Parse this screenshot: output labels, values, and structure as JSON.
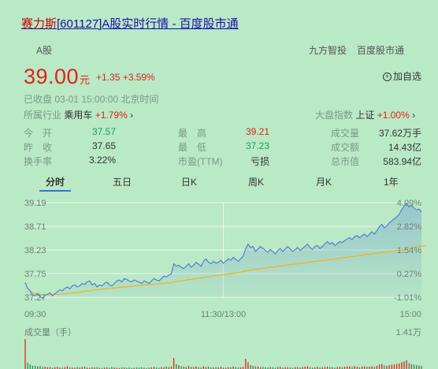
{
  "header": {
    "title_name": "赛力斯",
    "title_rest": "[601127]A股实时行情 - 百度股市通"
  },
  "subbar": {
    "market": "A股",
    "source1": "九方智投",
    "source2": "百度股市通"
  },
  "quote": {
    "price": "39.00",
    "unit": "元",
    "change": "+1.35 +3.59%",
    "add_watch": "加自选",
    "status": "已收盘  03-01 15:00:00  北京时间"
  },
  "industry": {
    "label": "所属行业",
    "name": "乘用车",
    "change": "+1.79%"
  },
  "index_info": {
    "label": "大盘指数",
    "name": "上证",
    "change": "+1.00%"
  },
  "stats": {
    "open_label": "今　开",
    "open": "37.57",
    "prev_label": "昨　收",
    "prev": "37.65",
    "turnover_label": "换手率",
    "turnover": "3.22%",
    "high_label": "最　高",
    "high": "39.21",
    "low_label": "最　低",
    "low": "37.23",
    "pe_label": "市盈(TTM)",
    "pe": "亏损",
    "vol_label": "成交量",
    "vol": "37.62万手",
    "amount_label": "成交额",
    "amount": "14.43亿",
    "mcap_label": "总市值",
    "mcap": "583.94亿"
  },
  "tabs": [
    "分时",
    "五日",
    "日K",
    "周K",
    "月K",
    "1年"
  ],
  "colors": {
    "price_line": "#4a78d6",
    "avg_line": "#f3b21a",
    "up": "#e0221b",
    "down": "#19a15f"
  },
  "chart_data": {
    "type": "line",
    "y_ticks": [
      "39.19",
      "38.71",
      "38.23",
      "37.75",
      "37.27"
    ],
    "pct_ticks": [
      "4.09%",
      "2.82%",
      "1.54%",
      "0.27%",
      "-1.01%"
    ],
    "x_ticks": [
      "09:30",
      "11:30/13:00",
      "15:00"
    ],
    "ylim": [
      37.27,
      39.19
    ],
    "volume_label": "成交量（手）",
    "volume_max": "1.41万",
    "series": [
      {
        "values": [
          37.57,
          37.45,
          37.4,
          37.32,
          37.3,
          37.35,
          37.28,
          37.25,
          37.31,
          37.33,
          37.36,
          37.3,
          37.34,
          37.38,
          37.42,
          37.4,
          37.45,
          37.48,
          37.44,
          37.5,
          37.52,
          37.48,
          37.5,
          37.55,
          37.53,
          37.58,
          37.6,
          37.52,
          37.55,
          37.48,
          37.52,
          37.5,
          37.55,
          37.58,
          37.52,
          37.5,
          37.55,
          37.6,
          37.62,
          37.58,
          37.65,
          37.63,
          37.6,
          37.58,
          37.62,
          37.6,
          37.58,
          37.55,
          37.6,
          37.58,
          37.55,
          37.6,
          37.65,
          37.62,
          37.6,
          37.65,
          37.7,
          37.68,
          37.72,
          37.75,
          37.95,
          37.9,
          37.92,
          37.88,
          37.85,
          37.9,
          37.95,
          37.88,
          37.92,
          37.98,
          37.94,
          37.9,
          38.0,
          38.05,
          37.98,
          37.95,
          38.0,
          37.96,
          37.98,
          38.02,
          37.96,
          38.0,
          38.05,
          38.02,
          38.08,
          38.04,
          38.0,
          38.05,
          38.1,
          38.25,
          38.35,
          38.28,
          38.3,
          38.2,
          38.25,
          38.3,
          38.26,
          38.22,
          38.18,
          38.24,
          38.2,
          38.15,
          38.22,
          38.26,
          38.2,
          38.25,
          38.3,
          38.25,
          38.2,
          38.24,
          38.28,
          38.22,
          38.26,
          38.3,
          38.35,
          38.28,
          38.24,
          38.3,
          38.32,
          38.26,
          38.3,
          38.35,
          38.4,
          38.35,
          38.38,
          38.32,
          38.36,
          38.4,
          38.38,
          38.42,
          38.45,
          38.48,
          38.44,
          38.5,
          38.52,
          38.48,
          38.52,
          38.55,
          38.5,
          38.55,
          38.6,
          38.55,
          38.62,
          38.7,
          38.75,
          38.68,
          38.72,
          38.78,
          38.82,
          38.86,
          38.9,
          38.95,
          39.05,
          39.12,
          39.18,
          39.1,
          39.14,
          39.08,
          39.04,
          39.06,
          39.0
        ]
      },
      {
        "values": [
          37.57,
          37.45,
          37.4,
          37.36,
          37.34,
          37.34,
          37.33,
          37.32,
          37.32,
          37.32,
          37.32,
          37.32,
          37.33,
          37.33,
          37.33,
          37.34,
          37.34,
          37.35,
          37.35,
          37.36,
          37.36,
          37.37,
          37.37,
          37.38,
          37.39,
          37.4,
          37.4,
          37.41,
          37.42,
          37.42,
          37.43,
          37.43,
          37.44,
          37.44,
          37.45,
          37.45,
          37.46,
          37.46,
          37.47,
          37.47,
          37.48,
          37.48,
          37.49,
          37.49,
          37.5,
          37.5,
          37.51,
          37.51,
          37.52,
          37.52,
          37.52,
          37.53,
          37.53,
          37.54,
          37.54,
          37.55,
          37.55,
          37.56,
          37.56,
          37.57,
          37.58,
          37.59,
          37.6,
          37.6,
          37.61,
          37.62,
          37.63,
          37.63,
          37.64,
          37.65,
          37.66,
          37.66,
          37.67,
          37.68,
          37.69,
          37.69,
          37.7,
          37.71,
          37.72,
          37.72,
          37.73,
          37.74,
          37.74,
          37.75,
          37.76,
          37.76,
          37.77,
          37.78,
          37.79,
          37.8,
          37.81,
          37.82,
          37.83,
          37.84,
          37.84,
          37.85,
          37.86,
          37.86,
          37.87,
          37.88,
          37.88,
          37.89,
          37.9,
          37.9,
          37.91,
          37.92,
          37.92,
          37.93,
          37.94,
          37.94,
          37.95,
          37.96,
          37.96,
          37.97,
          37.98,
          37.98,
          37.99,
          38.0,
          38.0,
          38.01,
          38.02,
          38.02,
          38.03,
          38.04,
          38.04,
          38.05,
          38.06,
          38.06,
          38.07,
          38.08,
          38.08,
          38.09,
          38.1,
          38.1,
          38.11,
          38.12,
          38.12,
          38.13,
          38.14,
          38.14,
          38.15,
          38.16,
          38.16,
          38.17,
          38.18,
          38.18,
          38.19,
          38.2,
          38.2,
          38.21,
          38.22,
          38.22,
          38.23,
          38.24,
          38.25,
          38.26,
          38.27,
          38.28,
          38.29,
          38.3,
          38.31,
          38.31,
          38.32
        ]
      }
    ],
    "volume": [
      14100,
      3000,
      2200,
      1600,
      1500,
      1200,
      1400,
      900,
      1100,
      800,
      900,
      700,
      800,
      1000,
      700,
      600,
      900,
      1300,
      800,
      700,
      600,
      800,
      700,
      900,
      1100,
      700,
      600,
      800,
      700,
      900,
      600,
      500,
      700,
      800,
      600,
      900,
      700,
      600,
      500,
      800,
      700,
      600,
      700,
      500,
      600,
      800,
      700,
      900,
      600,
      500,
      700,
      800,
      1000,
      700,
      600,
      900,
      800,
      1100,
      900,
      1200,
      5200,
      2200,
      1800,
      1300,
      1100,
      900,
      1400,
      1000,
      900,
      1200,
      800,
      700,
      1300,
      900,
      1100,
      800,
      700,
      900,
      800,
      1000,
      700,
      600,
      900,
      800,
      1200,
      900,
      700,
      800,
      1000,
      4800,
      3100,
      1800,
      1500,
      1300,
      1100,
      900,
      1000,
      800,
      700,
      900,
      800,
      600,
      900,
      1000,
      700,
      800,
      900,
      700,
      600,
      800,
      900,
      700,
      800,
      1100,
      1300,
      900,
      700,
      800,
      1000,
      700,
      800,
      900,
      1100,
      900,
      800,
      700,
      900,
      1000,
      800,
      1100,
      1200,
      1300,
      1000,
      1400,
      1100,
      900,
      1200,
      1300,
      1000,
      1100,
      1300,
      1000,
      1500,
      2100,
      2400,
      1700,
      1500,
      1800,
      2000,
      2200,
      2400,
      2600,
      3200,
      3600,
      4200,
      2800,
      2300,
      2000,
      1800,
      1600,
      1400
    ]
  }
}
